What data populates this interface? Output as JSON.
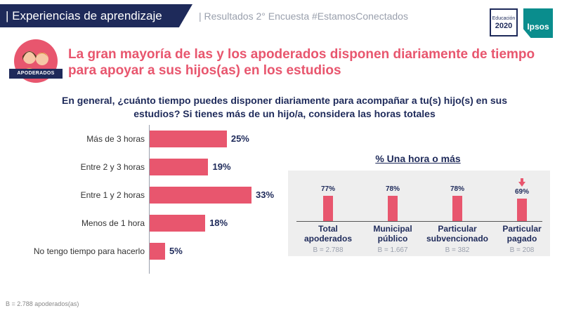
{
  "header": {
    "section_title": "| Experiencias de aprendizaje",
    "subtitle": "| Resultados 2° Encuesta #EstamosConectados",
    "logo_edu_top": "Educación",
    "logo_edu_bottom": "2020",
    "logo_ipsos": "Ipsos"
  },
  "avatar_badge": "APODERADOS",
  "headline": "La gran mayoría de las y los apoderados disponen diariamente de tiempo para apoyar a sus hijos(as) en los estudios",
  "question": "En general, ¿cuánto tiempo puedes disponer diariamente para acompañar a tu(s) hijo(s) en sus estudios? Si tienes más de un hijo/a, considera las horas totales",
  "colors": {
    "accent": "#e8566e",
    "navy": "#1e2a5a",
    "panel": "#eeeeee",
    "ipsos": "#0a8d8d"
  },
  "chart_data": [
    {
      "type": "bar",
      "orientation": "horizontal",
      "categories": [
        "Más de 3 horas",
        "Entre 2 y 3 horas",
        "Entre 1 y 2 horas",
        "Menos de 1 hora",
        "No tengo tiempo para hacerlo"
      ],
      "values": [
        25,
        19,
        33,
        18,
        5
      ],
      "value_labels": [
        "25%",
        "19%",
        "33%",
        "18%",
        "5%"
      ],
      "xlim": [
        0,
        40
      ]
    },
    {
      "type": "bar",
      "orientation": "vertical",
      "title": "% Una hora o más",
      "categories": [
        "Total apoderados",
        "Municipal público",
        "Particular subvencionado",
        "Particular pagado"
      ],
      "category_lines": [
        [
          "Total",
          "apoderados"
        ],
        [
          "Municipal",
          "público"
        ],
        [
          "Particular",
          "subvencionado"
        ],
        [
          "Particular",
          "pagado"
        ]
      ],
      "values": [
        77,
        78,
        78,
        69
      ],
      "value_labels": [
        "77%",
        "78%",
        "78%",
        "69%"
      ],
      "bases": [
        "B = 2.788",
        "B = 1.667",
        "B = 382",
        "B = 208"
      ],
      "significant_decrease": [
        false,
        false,
        false,
        true
      ],
      "ylim": [
        0,
        100
      ]
    }
  ],
  "footnote": "B = 2.788 apoderados(as)"
}
